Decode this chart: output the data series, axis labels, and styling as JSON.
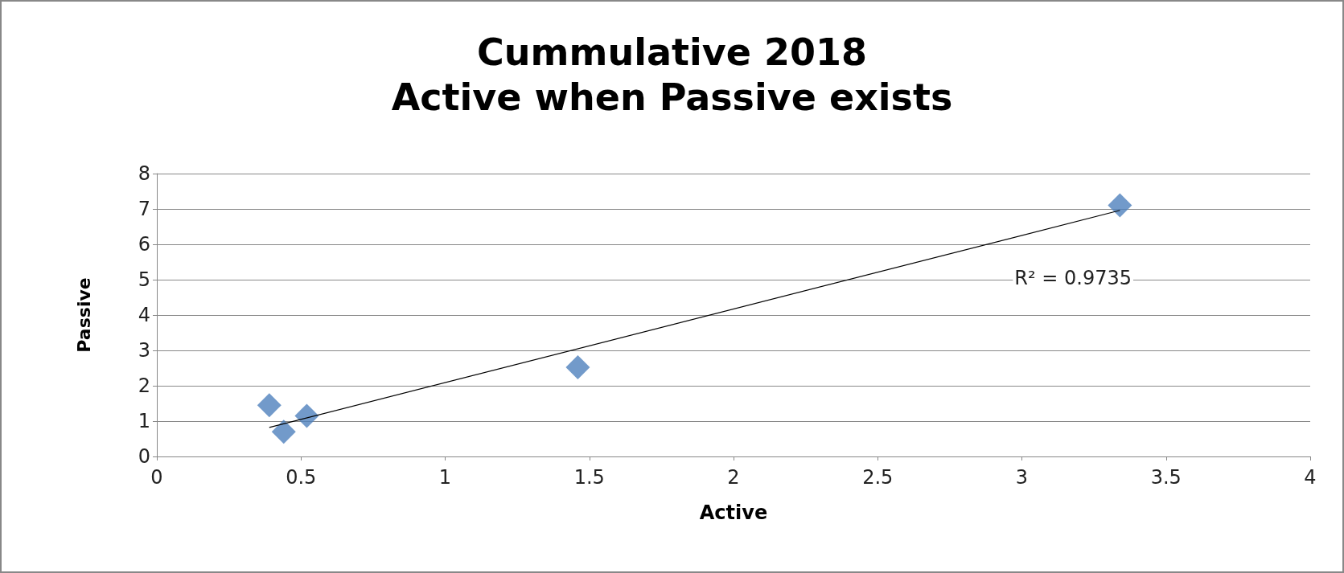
{
  "chart_data": {
    "type": "scatter",
    "title": "Cummulative 2018\nActive when Passive exists",
    "xlabel": "Active",
    "ylabel": "Passive",
    "xlim": [
      0,
      4
    ],
    "xticks": [
      0,
      0.5,
      1,
      1.5,
      2,
      2.5,
      3,
      3.5,
      4
    ],
    "ylim": [
      0,
      8
    ],
    "yticks": [
      0,
      1,
      2,
      3,
      4,
      5,
      6,
      7,
      8
    ],
    "grid": "y",
    "series": [
      {
        "color": "#4f81bd",
        "marker": "diamond",
        "x": [
          0.39,
          0.44,
          0.52,
          1.46,
          3.34
        ],
        "values": [
          1.45,
          0.7,
          1.15,
          2.52,
          7.1
        ]
      },
      {
        "type": "line",
        "color": "#000000",
        "marker": "none",
        "x": [
          0.39,
          3.34
        ],
        "values": [
          0.82,
          6.96
        ]
      }
    ],
    "annotations": [
      "R² = 0.9735"
    ]
  }
}
